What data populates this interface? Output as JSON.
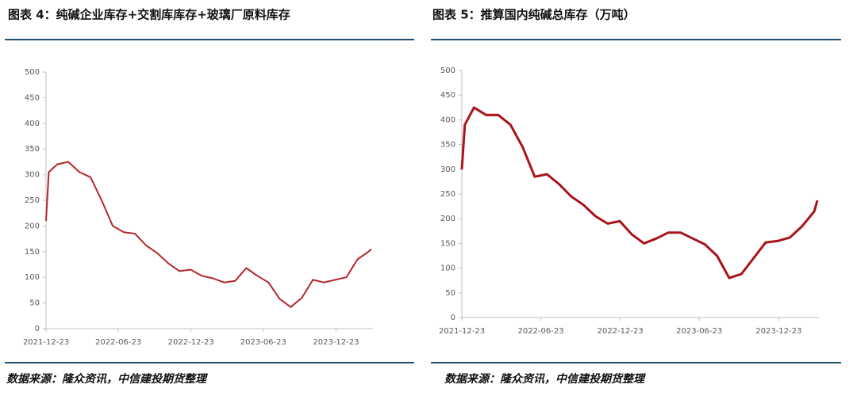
{
  "chart_data": [
    {
      "type": "line",
      "title": "图表 4：纯碱企业库存+交割库库存+玻璃厂原料库存",
      "source": "数据来源：隆众资讯，中信建投期货整理",
      "x": [
        "2021-12-23",
        "2021-12-30",
        "2022-01-20",
        "2022-02-17",
        "2022-03-17",
        "2022-04-14",
        "2022-05-12",
        "2022-06-09",
        "2022-07-07",
        "2022-08-04",
        "2022-09-01",
        "2022-09-29",
        "2022-10-27",
        "2022-11-24",
        "2022-12-22",
        "2023-01-19",
        "2023-02-16",
        "2023-03-16",
        "2023-04-13",
        "2023-05-11",
        "2023-06-08",
        "2023-07-06",
        "2023-08-03",
        "2023-08-31",
        "2023-09-28",
        "2023-10-26",
        "2023-11-23",
        "2023-12-21",
        "2024-01-18",
        "2024-02-15",
        "2024-03-14",
        "2024-03-21"
      ],
      "series": [
        {
          "color": "#b5262b",
          "values": [
            210,
            305,
            320,
            325,
            305,
            295,
            250,
            200,
            188,
            185,
            162,
            147,
            127,
            112,
            115,
            103,
            98,
            90,
            93,
            118,
            103,
            90,
            58,
            42,
            60,
            95,
            90,
            95,
            100,
            135,
            150,
            155
          ]
        }
      ],
      "xlim": [
        "2021-12-23",
        "2024-03-21"
      ],
      "xticks": [
        "2021-12-23",
        "2022-06-23",
        "2022-12-23",
        "2023-06-23",
        "2023-12-23"
      ],
      "ylim": [
        0,
        500
      ],
      "yticks": [
        0,
        50,
        100,
        150,
        200,
        250,
        300,
        350,
        400,
        450,
        500
      ]
    },
    {
      "type": "line",
      "title": "图表 5：推算国内纯碱总库存（万吨）",
      "source": "数据来源：隆众资讯，中信建投期货整理",
      "x": [
        "2021-12-23",
        "2021-12-30",
        "2022-01-20",
        "2022-02-17",
        "2022-03-17",
        "2022-04-14",
        "2022-05-12",
        "2022-06-09",
        "2022-07-07",
        "2022-08-04",
        "2022-09-01",
        "2022-09-29",
        "2022-10-27",
        "2022-11-24",
        "2022-12-22",
        "2023-01-19",
        "2023-02-16",
        "2023-03-16",
        "2023-04-13",
        "2023-05-11",
        "2023-06-08",
        "2023-07-06",
        "2023-08-03",
        "2023-08-31",
        "2023-09-28",
        "2023-10-26",
        "2023-11-23",
        "2023-12-21",
        "2024-01-18",
        "2024-02-15",
        "2024-03-14",
        "2024-03-21"
      ],
      "series": [
        {
          "color": "#a8141a",
          "values": [
            300,
            390,
            425,
            410,
            410,
            390,
            345,
            285,
            290,
            270,
            245,
            228,
            205,
            190,
            195,
            168,
            150,
            160,
            172,
            172,
            160,
            148,
            125,
            80,
            88,
            120,
            152,
            155,
            162,
            185,
            215,
            237
          ]
        }
      ],
      "xlim": [
        "2021-12-23",
        "2024-03-21"
      ],
      "xticks": [
        "2021-12-23",
        "2022-06-23",
        "2022-12-23",
        "2023-06-23",
        "2023-12-23"
      ],
      "ylim": [
        0,
        500
      ],
      "yticks": [
        0,
        50,
        100,
        150,
        200,
        250,
        300,
        350,
        400,
        450,
        500
      ]
    }
  ]
}
